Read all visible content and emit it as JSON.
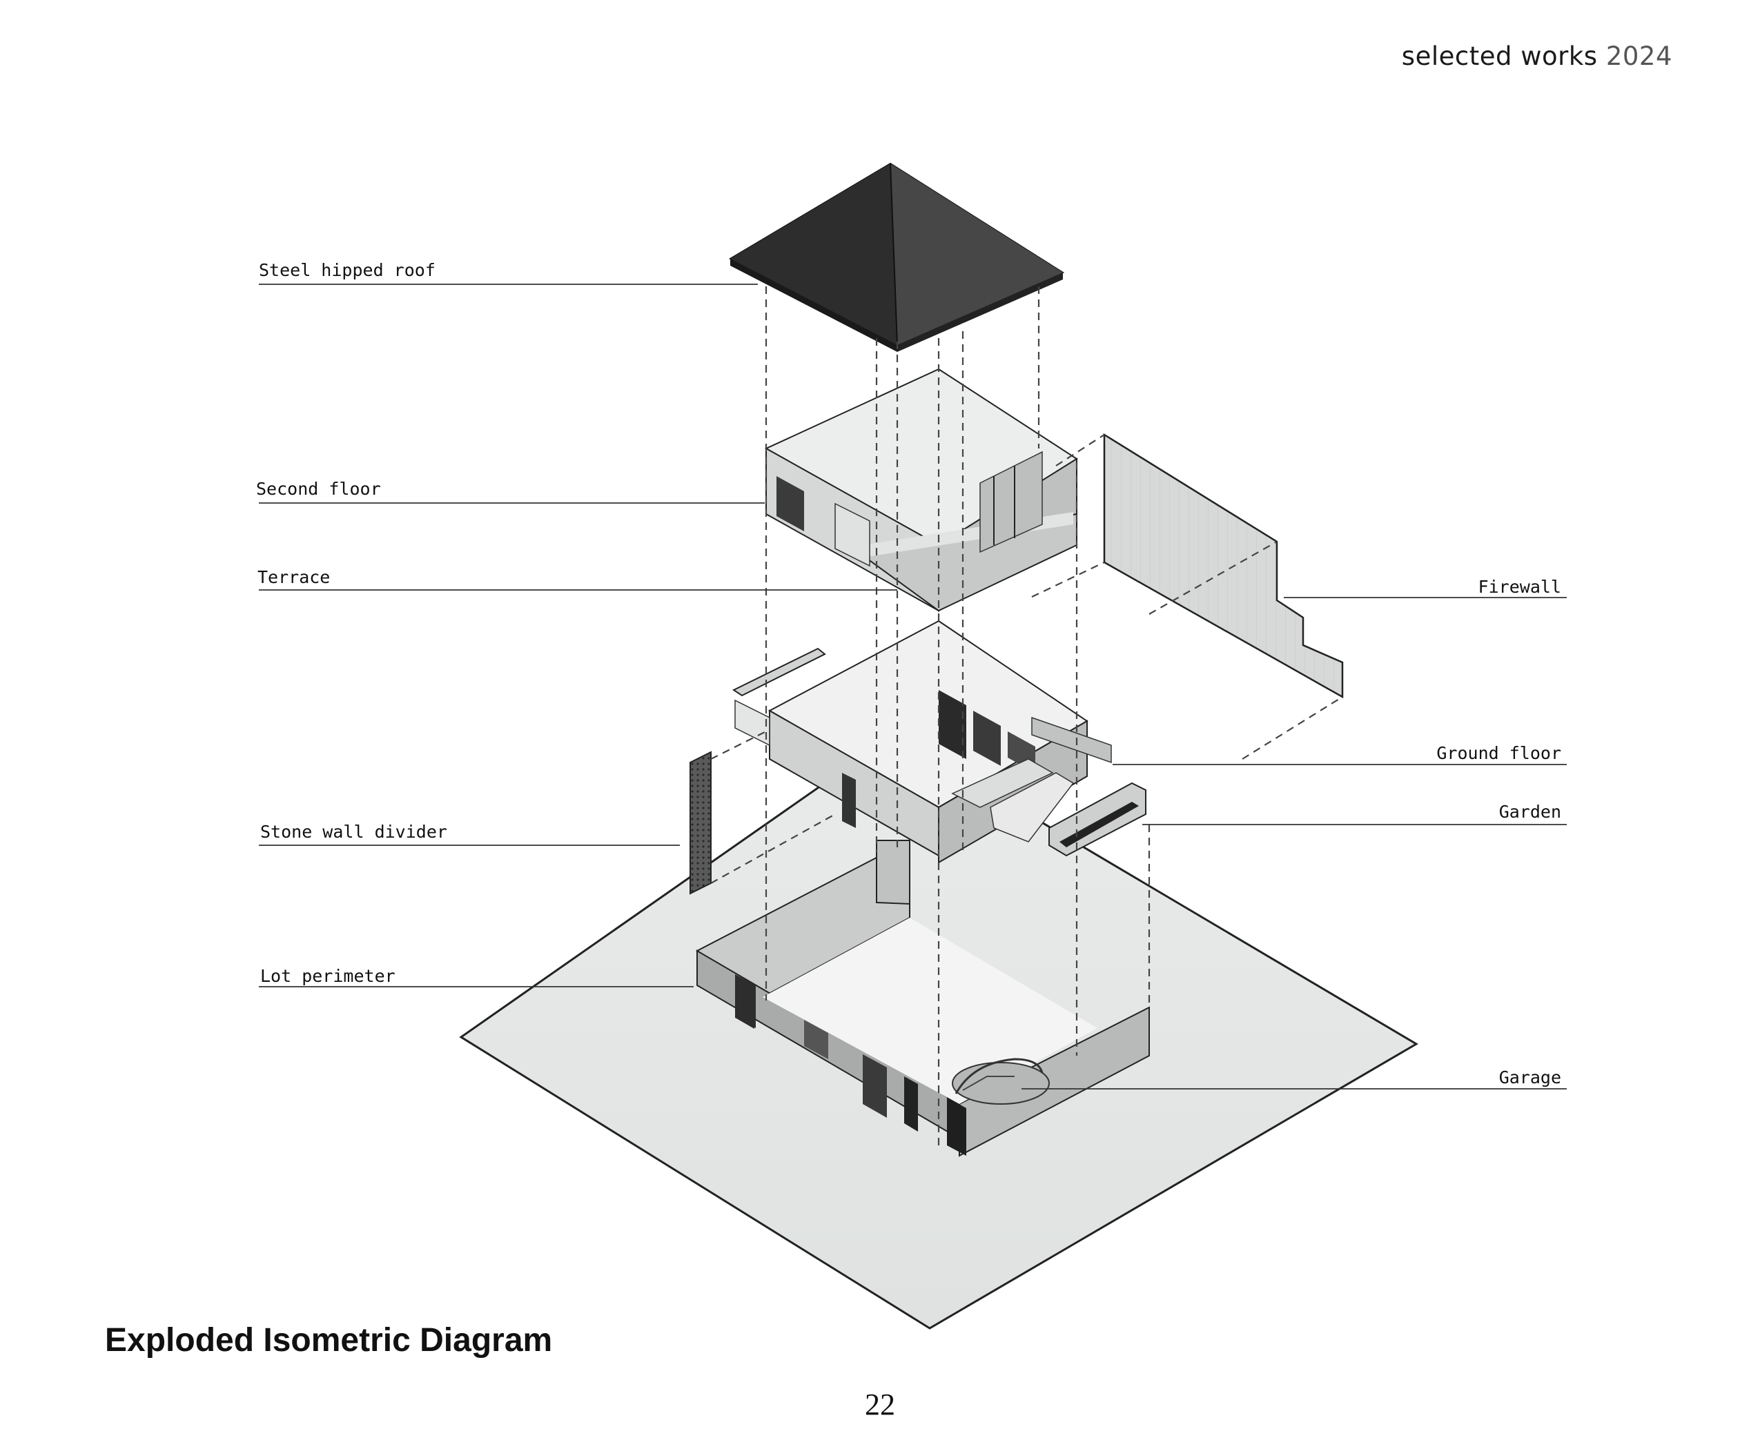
{
  "header": {
    "prefix": "selected works",
    "year": "2024"
  },
  "labels": {
    "steel_hipped_roof": "Steel hipped roof",
    "second_floor": "Second floor",
    "terrace": "Terrace",
    "firewall": "Firewall",
    "ground_floor": "Ground floor",
    "garden": "Garden",
    "stone_wall_divider": "Stone wall divider",
    "lot_perimeter": "Lot perimeter",
    "garage": "Garage"
  },
  "title": "Exploded Isometric Diagram",
  "page_number": "22"
}
